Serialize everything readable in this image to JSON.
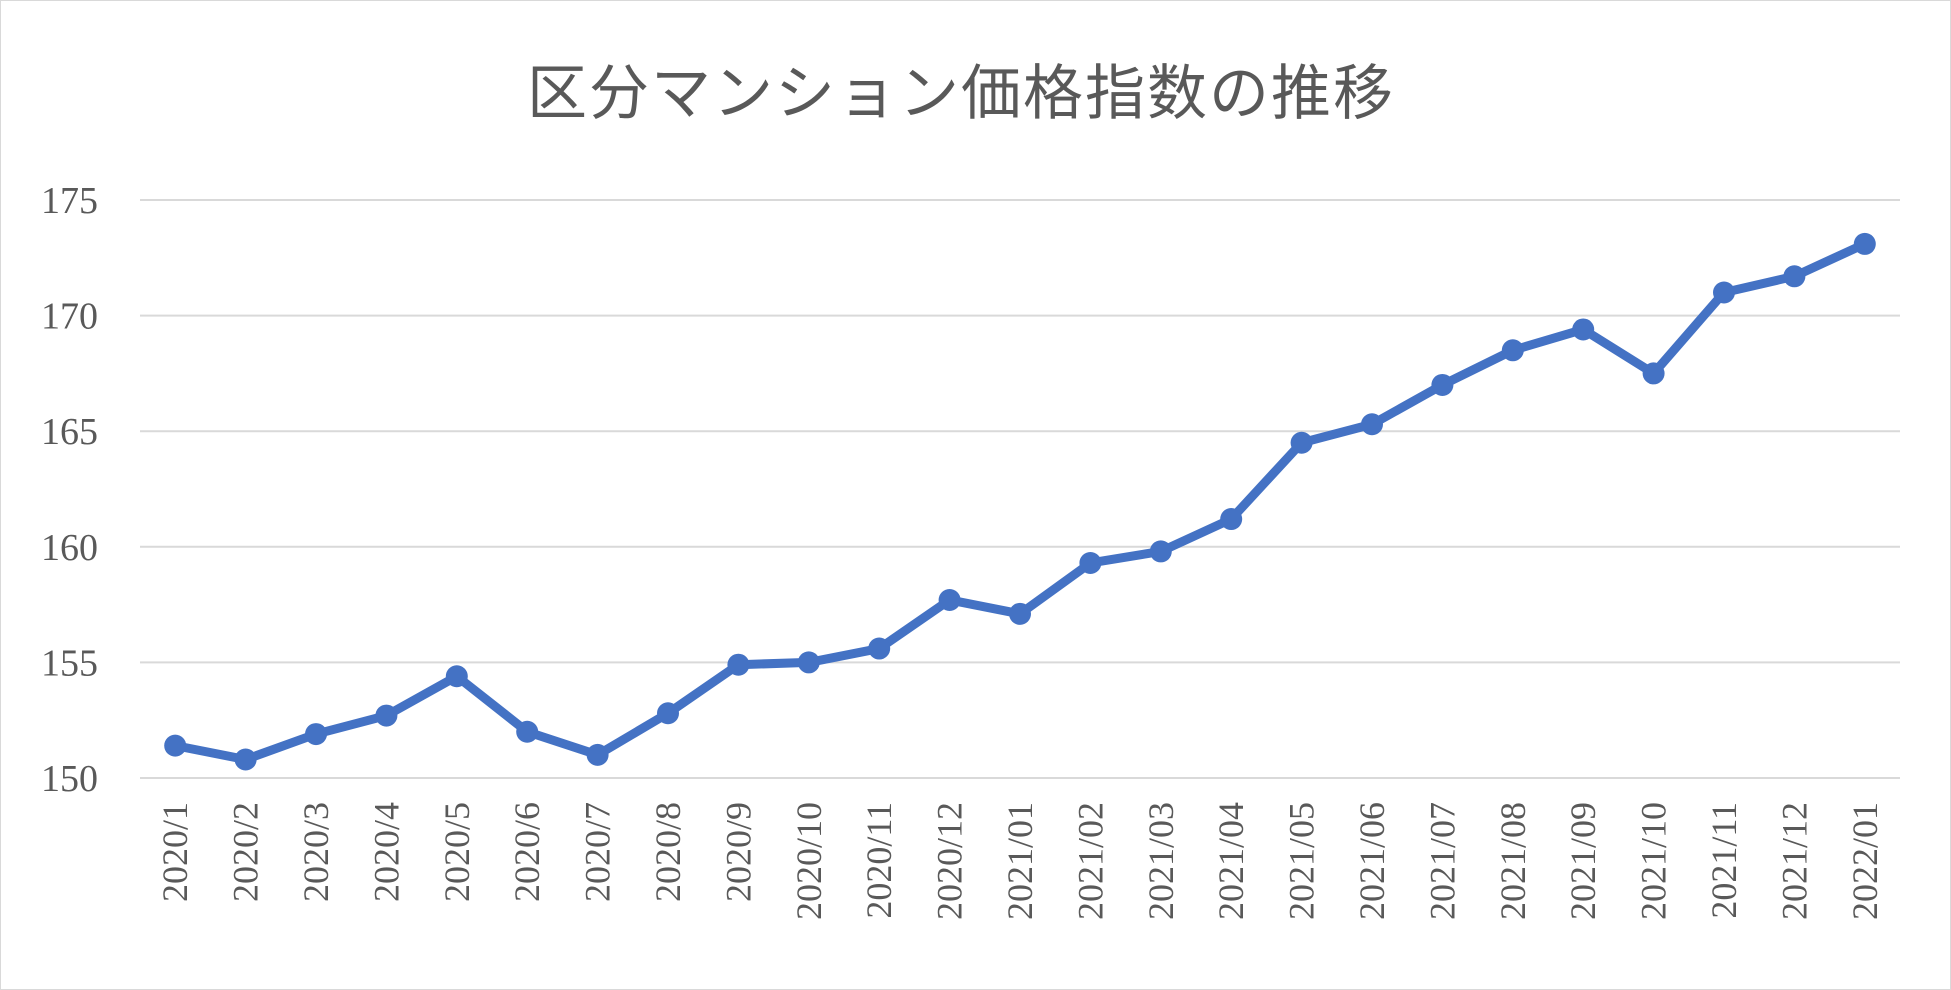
{
  "chart_data": {
    "type": "line",
    "title": "区分マンション価格指数の推移",
    "xlabel": "",
    "ylabel": "",
    "categories": [
      "2020/1",
      "2020/2",
      "2020/3",
      "2020/4",
      "2020/5",
      "2020/6",
      "2020/7",
      "2020/8",
      "2020/9",
      "2020/10",
      "2020/11",
      "2020/12",
      "2021/01",
      "2021/02",
      "2021/03",
      "2021/04",
      "2021/05",
      "2021/06",
      "2021/07",
      "2021/08",
      "2021/09",
      "2021/10",
      "2021/11",
      "2021/12",
      "2022/01"
    ],
    "series": [
      {
        "values": [
          151.4,
          150.8,
          151.9,
          152.7,
          154.4,
          152.0,
          151.0,
          152.8,
          154.9,
          155.0,
          155.6,
          157.7,
          157.1,
          159.3,
          159.8,
          161.2,
          164.5,
          165.3,
          167.0,
          168.5,
          169.4,
          167.5,
          171.0,
          171.7,
          173.1
        ],
        "color": "#4472c4"
      }
    ],
    "ylim": [
      150,
      175
    ],
    "yticks": [
      150,
      155,
      160,
      165,
      170,
      175
    ],
    "grid": true,
    "legend": "none"
  }
}
